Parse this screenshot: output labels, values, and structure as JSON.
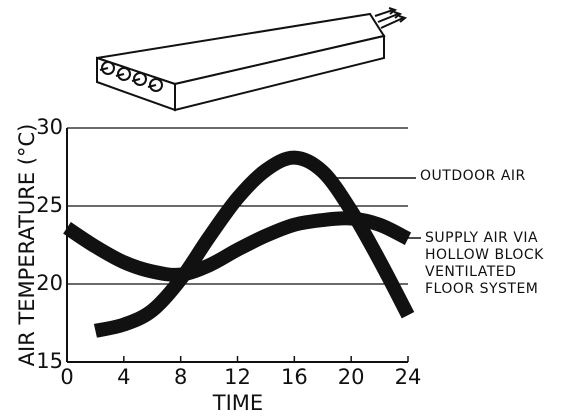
{
  "chart_data": {
    "type": "line",
    "x_label": "TIME",
    "y_label": "AIR TEMPERATURE (°C)",
    "x": [
      0,
      2,
      4,
      6,
      8,
      10,
      12,
      14,
      16,
      18,
      20,
      22,
      24
    ],
    "series": [
      {
        "name": "OUTDOOR AIR",
        "color": "#111111",
        "values": [
          null,
          17.0,
          17.4,
          18.3,
          20.3,
          23.0,
          25.5,
          27.3,
          28.1,
          27.2,
          24.7,
          21.5,
          18.0
        ]
      },
      {
        "name": "SUPPLY AIR VIA HOLLOW BLOCK VENTILATED FLOOR SYSTEM",
        "color": "#111111",
        "values": [
          23.6,
          22.4,
          21.4,
          20.8,
          20.6,
          21.2,
          22.2,
          23.1,
          23.8,
          24.1,
          24.2,
          23.8,
          22.9
        ]
      }
    ],
    "xlim": [
      0,
      24
    ],
    "xticks": [
      0,
      4,
      8,
      12,
      16,
      20,
      24
    ],
    "ylim": [
      15,
      30
    ],
    "yticks": [
      15,
      20,
      25,
      30
    ],
    "grid": true
  }
}
